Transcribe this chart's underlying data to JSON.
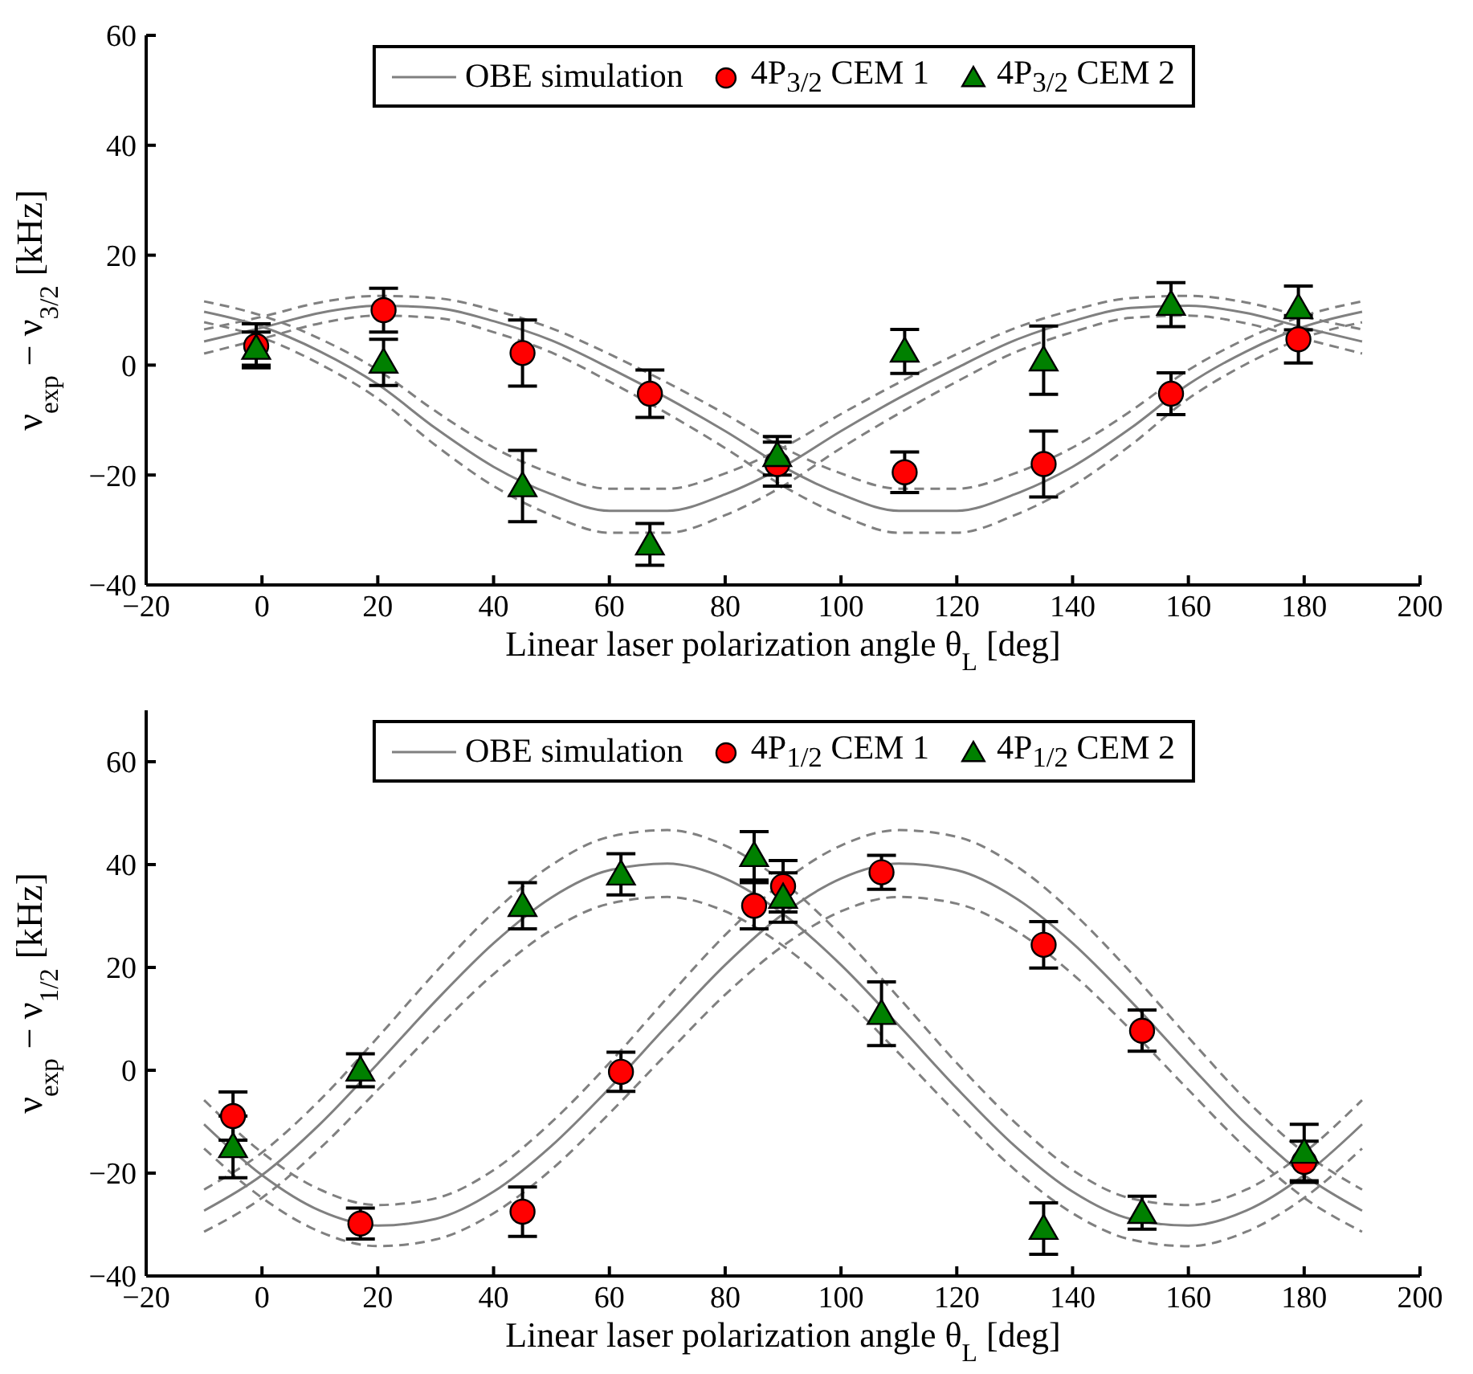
{
  "chart_data": [
    {
      "type": "scatter",
      "xlabel": "Linear laser polarization angle θ$_{L}$ [deg]",
      "ylabel": "ν$_{exp}$ − ν$_{3/2}$ [kHz]",
      "xlim": [
        -20,
        200
      ],
      "xticks": [
        -20,
        0,
        20,
        40,
        60,
        80,
        100,
        120,
        140,
        160,
        180,
        200
      ],
      "ylim": [
        -40,
        60
      ],
      "yticks": [
        -40,
        -20,
        0,
        20,
        40,
        60
      ],
      "legend": "top",
      "series": [
        {
          "type": "line",
          "name": "OBE simulation",
          "color": "#808080",
          "line_style": "solid",
          "marker": "none",
          "x": [
            -10,
            0,
            10,
            20,
            30,
            40,
            50,
            60,
            70,
            80,
            90,
            100,
            110,
            120,
            130,
            140,
            150,
            160,
            170,
            180,
            190
          ],
          "values": [
            4.3,
            6.8,
            9.5,
            10.8,
            10.4,
            8,
            4.5,
            -0.5,
            -6,
            -12,
            -18.5,
            -23.5,
            -26.5,
            -26.5,
            -23.5,
            -18.5,
            -11.5,
            -3.5,
            2.5,
            7,
            9.7
          ]
        },
        {
          "type": "line",
          "color": "#808080",
          "line_style": "dashed",
          "marker": "none",
          "x": [
            -10,
            0,
            10,
            20,
            30,
            40,
            50,
            60,
            70,
            80,
            90,
            100,
            110,
            120,
            130,
            140,
            150,
            160,
            170,
            180,
            190
          ],
          "values": [
            6.5,
            8.8,
            11.4,
            12.6,
            12.2,
            10,
            6.7,
            2,
            -3.2,
            -8.9,
            -15,
            -19.7,
            -22.5,
            -22.5,
            -19.7,
            -15,
            -8.4,
            -0.9,
            4.8,
            9,
            11.6
          ]
        },
        {
          "type": "line",
          "color": "#808080",
          "line_style": "dashed",
          "marker": "none",
          "x": [
            -10,
            0,
            10,
            20,
            30,
            40,
            50,
            60,
            70,
            80,
            90,
            100,
            110,
            120,
            130,
            140,
            150,
            160,
            170,
            180,
            190
          ],
          "values": [
            2.1,
            4.8,
            7.6,
            9,
            8.6,
            6,
            2.3,
            -3,
            -8.8,
            -15.1,
            -22,
            -27.3,
            -30.5,
            -30.5,
            -27.3,
            -22,
            -14.6,
            -6.1,
            0.2,
            5,
            7.8
          ]
        },
        {
          "type": "line",
          "color": "#808080",
          "line_style": "solid",
          "marker": "none",
          "x": [
            -10,
            0,
            10,
            20,
            30,
            40,
            50,
            60,
            70,
            80,
            90,
            100,
            110,
            120,
            130,
            140,
            150,
            160,
            170,
            180,
            190
          ],
          "values": [
            9.7,
            7,
            2.5,
            -3.5,
            -11.5,
            -18.5,
            -23.5,
            -26.5,
            -26.5,
            -23.5,
            -18.5,
            -12,
            -6,
            -0.5,
            4.5,
            8,
            10.4,
            10.8,
            9.5,
            6.8,
            4.3
          ]
        },
        {
          "type": "line",
          "color": "#808080",
          "line_style": "dashed",
          "marker": "none",
          "x": [
            -10,
            0,
            10,
            20,
            30,
            40,
            50,
            60,
            70,
            80,
            90,
            100,
            110,
            120,
            130,
            140,
            150,
            160,
            170,
            180,
            190
          ],
          "values": [
            11.6,
            9,
            4.8,
            -0.9,
            -8.4,
            -15,
            -19.7,
            -22.5,
            -22.5,
            -19.7,
            -15,
            -8.9,
            -3.2,
            2,
            6.7,
            10,
            12.2,
            12.6,
            11.4,
            8.8,
            6.5
          ]
        },
        {
          "type": "line",
          "color": "#808080",
          "line_style": "dashed",
          "marker": "none",
          "x": [
            -10,
            0,
            10,
            20,
            30,
            40,
            50,
            60,
            70,
            80,
            90,
            100,
            110,
            120,
            130,
            140,
            150,
            160,
            170,
            180,
            190
          ],
          "values": [
            7.8,
            5,
            0.2,
            -6.1,
            -14.6,
            -22,
            -27.3,
            -30.5,
            -30.5,
            -27.3,
            -22,
            -15.1,
            -8.8,
            -3,
            2.3,
            6,
            8.6,
            9,
            7.6,
            4.8,
            2.1
          ]
        },
        {
          "name": "4P$_{3/2}$ CEM 1",
          "color": "#ff0000",
          "marker": "circle",
          "x": [
            -1,
            21,
            45,
            67,
            89,
            111,
            135,
            157,
            179
          ],
          "values": [
            3.5,
            10,
            2.2,
            -5.2,
            -18,
            -19.5,
            -18,
            -5.2,
            4.7
          ],
          "errors": [
            4,
            4,
            6,
            4.3,
            4,
            3.7,
            6,
            3.8,
            4.3
          ]
        },
        {
          "name": "4P$_{3/2}$ CEM 2",
          "color": "#008000",
          "marker": "triangle",
          "x": [
            -1,
            21,
            45,
            67,
            89,
            111,
            135,
            157,
            179
          ],
          "values": [
            3,
            0.5,
            -22,
            -32.6,
            -16.5,
            2.5,
            0.9,
            11,
            10.4
          ],
          "errors": [
            3,
            4.2,
            6.5,
            3.8,
            3.5,
            4,
            6.2,
            4,
            4
          ]
        }
      ]
    },
    {
      "type": "scatter",
      "xlabel": "Linear laser polarization angle θ$_{L}$ [deg]",
      "ylabel": "ν$_{exp}$ − ν$_{1/2}$ [kHz]",
      "xlim": [
        -20,
        200
      ],
      "xticks": [
        -20,
        0,
        20,
        40,
        60,
        80,
        100,
        120,
        140,
        160,
        180,
        200
      ],
      "ylim": [
        -40,
        70
      ],
      "yticks": [
        -40,
        -20,
        0,
        20,
        40,
        60
      ],
      "legend": "top",
      "series": [
        {
          "type": "line",
          "name": "OBE simulation",
          "color": "#808080",
          "line_style": "solid",
          "marker": "none",
          "x": [
            -10,
            0,
            10,
            20,
            30,
            40,
            50,
            60,
            70,
            80,
            90,
            100,
            110,
            120,
            130,
            140,
            150,
            160,
            170,
            180,
            190
          ],
          "values": [
            -27.3,
            -20.4,
            -10.5,
            1.3,
            13.5,
            24.7,
            33.6,
            38.9,
            40.2,
            37.3,
            30.4,
            20.5,
            8.7,
            -3.5,
            -14.7,
            -23.6,
            -28.9,
            -30.2,
            -27.3,
            -20.4,
            -10.5
          ]
        },
        {
          "type": "line",
          "color": "#808080",
          "line_style": "dashed",
          "marker": "none",
          "x": [
            -10,
            0,
            10,
            20,
            30,
            40,
            50,
            60,
            70,
            80,
            90,
            100,
            110,
            120,
            130,
            140,
            150,
            160,
            170,
            180,
            190
          ],
          "values": [
            -23.2,
            -16,
            -5.8,
            6.4,
            19.1,
            30.7,
            39.9,
            45.4,
            46.7,
            43.7,
            36.6,
            26.3,
            14.1,
            1.4,
            -10.1,
            -19.4,
            -24.9,
            -26.2,
            -23.2,
            -16,
            -5.8
          ]
        },
        {
          "type": "line",
          "color": "#808080",
          "line_style": "dashed",
          "marker": "none",
          "x": [
            -10,
            0,
            10,
            20,
            30,
            40,
            50,
            60,
            70,
            80,
            90,
            100,
            110,
            120,
            130,
            140,
            150,
            160,
            170,
            180,
            190
          ],
          "values": [
            -31.4,
            -24.8,
            -15.2,
            -3.8,
            7.9,
            18.7,
            27.3,
            32.4,
            33.7,
            30.9,
            24.2,
            14.7,
            3.3,
            -8.4,
            -19.3,
            -27.8,
            -32.9,
            -34.2,
            -31.4,
            -24.8,
            -15.2
          ]
        },
        {
          "type": "line",
          "color": "#808080",
          "line_style": "solid",
          "marker": "none",
          "x": [
            -10,
            0,
            10,
            20,
            30,
            40,
            50,
            60,
            70,
            80,
            90,
            100,
            110,
            120,
            130,
            140,
            150,
            160,
            170,
            180,
            190
          ],
          "values": [
            -10.5,
            -20.4,
            -27.3,
            -30.2,
            -28.9,
            -23.6,
            -14.7,
            -3.5,
            8.7,
            20.5,
            30.4,
            37.3,
            40.2,
            38.9,
            33.6,
            24.7,
            13.5,
            1.3,
            -10.5,
            -20.4,
            -27.3
          ]
        },
        {
          "type": "line",
          "color": "#808080",
          "line_style": "dashed",
          "marker": "none",
          "x": [
            -10,
            0,
            10,
            20,
            30,
            40,
            50,
            60,
            70,
            80,
            90,
            100,
            110,
            120,
            130,
            140,
            150,
            160,
            170,
            180,
            190
          ],
          "values": [
            -5.8,
            -16,
            -23.2,
            -26.2,
            -24.9,
            -19.4,
            -10.1,
            1.4,
            14.1,
            26.3,
            36.6,
            43.7,
            46.7,
            45.4,
            39.9,
            30.7,
            19.1,
            6.4,
            -5.8,
            -16,
            -23.2
          ]
        },
        {
          "type": "line",
          "color": "#808080",
          "line_style": "dashed",
          "marker": "none",
          "x": [
            -10,
            0,
            10,
            20,
            30,
            40,
            50,
            60,
            70,
            80,
            90,
            100,
            110,
            120,
            130,
            140,
            150,
            160,
            170,
            180,
            190
          ],
          "values": [
            -15.2,
            -24.8,
            -31.4,
            -34.2,
            -32.9,
            -27.8,
            -19.3,
            -8.4,
            3.3,
            14.7,
            24.2,
            30.9,
            33.7,
            32.4,
            27.3,
            18.7,
            7.9,
            -3.8,
            -15.2,
            -24.8,
            -31.4
          ]
        },
        {
          "name": "4P$_{1/2}$ CEM 1",
          "color": "#ff0000",
          "marker": "circle",
          "x": [
            -5,
            17,
            45,
            62,
            85,
            90,
            107,
            135,
            152,
            180
          ],
          "values": [
            -8.9,
            -29.8,
            -27.5,
            -0.3,
            32,
            35.8,
            38.5,
            24.4,
            7.7,
            -17.8
          ],
          "errors": [
            4.7,
            3,
            4.8,
            3.8,
            4.5,
            5,
            3.3,
            4.5,
            4,
            4
          ]
        },
        {
          "name": "4P$_{1/2}$ CEM 2",
          "color": "#008000",
          "marker": "triangle",
          "x": [
            -5,
            17,
            45,
            62,
            85,
            90,
            107,
            135,
            152,
            180
          ],
          "values": [
            -14.9,
            0,
            32,
            38.1,
            41.7,
            33.6,
            11,
            -30.8,
            -27.7,
            -16
          ],
          "errors": [
            6,
            3.2,
            4.5,
            4,
            4.7,
            4.8,
            6.2,
            5,
            3.2,
            5.5
          ]
        }
      ]
    }
  ]
}
